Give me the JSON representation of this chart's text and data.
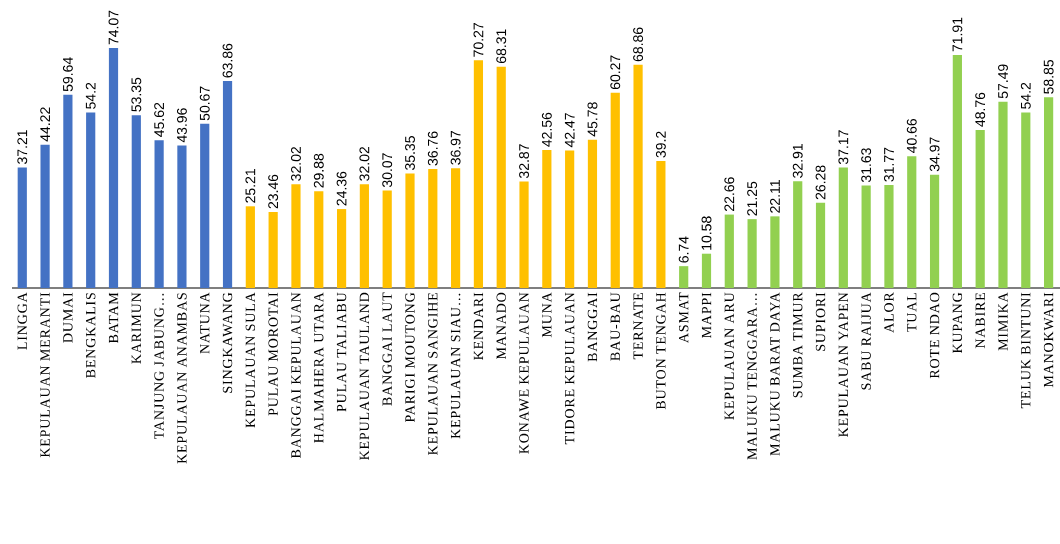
{
  "chart_data": {
    "type": "bar",
    "categories": [
      "LINGGA",
      "KEPULAUAN MERANTI",
      "DUMAI",
      "BENGKALIS",
      "BATAM",
      "KARIMUN",
      "TANJUNG JABUNG…",
      "KEPULAUAN ANAMBAS",
      "NATUNA",
      "SINGKAWANG",
      "KEPULAUAN SULA",
      "PULAU MOROTAI",
      "BANGGAI KEPULAUAN",
      "HALMAHERA UTARA",
      "PULAU TALIABU",
      "KEPULAUAN TAULAND",
      "BANGGAI LAUT",
      "PARIGI MOUTONG",
      "KEPULAUAN SANGIHE",
      "KEPULAUAN SIAU…",
      "KENDARI",
      "MANADO",
      "KONAWE KEPULAUAN",
      "MUNA",
      "TIDORE KEPULAUAN",
      "BANGGAI",
      "BAU-BAU",
      "TERNATE",
      "BUTON TENGAH",
      "ASMAT",
      "MAPPI",
      "KEPULAUAN ARU",
      "MALUKU TENGGARA…",
      "MALUKU BARAT DAYA",
      "SUMBA TIMUR",
      "SUPIORI",
      "KEPULAUAN YAPEN",
      "SABU RAIJUA",
      "ALOR",
      "TUAL",
      "ROTE NDAO",
      "KUPANG",
      "NABIRE",
      "MIMIKA",
      "TELUK BINTUNI",
      "MANOKWARI"
    ],
    "values": [
      37.21,
      44.22,
      59.64,
      54.2,
      74.07,
      53.35,
      45.62,
      43.96,
      50.67,
      63.86,
      25.21,
      23.46,
      32.02,
      29.88,
      24.36,
      32.02,
      30.07,
      35.35,
      36.76,
      36.97,
      70.27,
      68.31,
      32.87,
      42.56,
      42.47,
      45.78,
      60.27,
      68.86,
      39.2,
      6.74,
      10.58,
      22.66,
      21.25,
      22.11,
      32.91,
      26.28,
      37.17,
      31.63,
      31.77,
      40.66,
      34.97,
      71.91,
      48.76,
      57.49,
      54.2,
      58.85
    ],
    "colors": [
      "#4472c4",
      "#4472c4",
      "#4472c4",
      "#4472c4",
      "#4472c4",
      "#4472c4",
      "#4472c4",
      "#4472c4",
      "#4472c4",
      "#4472c4",
      "#ffc000",
      "#ffc000",
      "#ffc000",
      "#ffc000",
      "#ffc000",
      "#ffc000",
      "#ffc000",
      "#ffc000",
      "#ffc000",
      "#ffc000",
      "#ffc000",
      "#ffc000",
      "#ffc000",
      "#ffc000",
      "#ffc000",
      "#ffc000",
      "#ffc000",
      "#ffc000",
      "#ffc000",
      "#92d050",
      "#92d050",
      "#92d050",
      "#92d050",
      "#92d050",
      "#92d050",
      "#92d050",
      "#92d050",
      "#92d050",
      "#92d050",
      "#92d050",
      "#92d050",
      "#92d050",
      "#92d050",
      "#92d050",
      "#92d050",
      "#92d050"
    ],
    "data_labels": true
  }
}
